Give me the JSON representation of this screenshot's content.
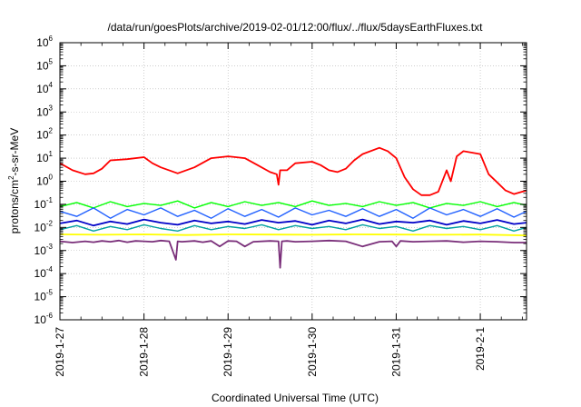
{
  "chart_data": {
    "type": "line",
    "title": "/data/run/goesPlots/archive/2019-02-01/12:00/flux/../flux/5daysEarthFluxes.txt",
    "xlabel": "Coordinated Universal Time (UTC)",
    "ylabel_parts": [
      "protons/cm",
      "2",
      "-s-sr-MeV"
    ],
    "x_ticks": [
      "2019-1-27",
      "2019-1-28",
      "2019-1-29",
      "2019-1-30",
      "2019-1-31",
      "2019-2-1"
    ],
    "xlim_days": [
      0,
      5.55
    ],
    "y_scale": "log",
    "ylim_exp": [
      -6,
      6
    ],
    "y_ticks": [
      {
        "base": "10",
        "exp": "-6"
      },
      {
        "base": "10",
        "exp": "-5"
      },
      {
        "base": "10",
        "exp": "-4"
      },
      {
        "base": "10",
        "exp": "-3"
      },
      {
        "base": "10",
        "exp": "-2"
      },
      {
        "base": "10",
        "exp": "-1"
      },
      {
        "base": "10",
        "exp": "0"
      },
      {
        "base": "10",
        "exp": "1"
      },
      {
        "base": "10",
        "exp": "2"
      },
      {
        "base": "10",
        "exp": "3"
      },
      {
        "base": "10",
        "exp": "4"
      },
      {
        "base": "10",
        "exp": "5"
      },
      {
        "base": "10",
        "exp": "6"
      }
    ],
    "grid": true,
    "series": [
      {
        "color": "#7a2f7a",
        "width": 1.8,
        "x": [
          0,
          0.15,
          0.3,
          0.4,
          0.5,
          0.6,
          0.7,
          0.8,
          0.9,
          1.0,
          1.1,
          1.2,
          1.3,
          1.38,
          1.4,
          1.45,
          1.6,
          1.7,
          1.8,
          1.9,
          2.0,
          2.1,
          2.2,
          2.3,
          2.5,
          2.6,
          2.62,
          2.64,
          2.7,
          2.8,
          3.0,
          3.2,
          3.4,
          3.6,
          3.8,
          3.95,
          4.0,
          4.05,
          4.2,
          4.4,
          4.6,
          4.8,
          5.0,
          5.2,
          5.4,
          5.55
        ],
        "y": [
          0.0025,
          0.0022,
          0.0025,
          0.0023,
          0.0026,
          0.0024,
          0.0027,
          0.0023,
          0.0026,
          0.0025,
          0.0024,
          0.0027,
          0.0025,
          0.0004,
          0.0025,
          0.0024,
          0.0026,
          0.0023,
          0.0026,
          0.0015,
          0.0026,
          0.0025,
          0.0015,
          0.0024,
          0.0026,
          0.0025,
          0.00018,
          0.0025,
          0.0026,
          0.0024,
          0.0025,
          0.0027,
          0.0025,
          0.0015,
          0.0024,
          0.0025,
          0.0015,
          0.0026,
          0.0024,
          0.0025,
          0.0026,
          0.0023,
          0.0025,
          0.0024,
          0.0022,
          0.0022
        ]
      },
      {
        "color": "#ffff00",
        "width": 1.8,
        "x": [
          0,
          0.5,
          1.0,
          1.5,
          2.0,
          2.5,
          3.0,
          3.5,
          4.0,
          4.5,
          5.0,
          5.55
        ],
        "y": [
          0.005,
          0.0048,
          0.005,
          0.0047,
          0.005,
          0.0049,
          0.0048,
          0.005,
          0.0049,
          0.0048,
          0.0049,
          0.0045
        ]
      },
      {
        "color": "#00a0a0",
        "width": 1.4,
        "x": [
          0,
          0.2,
          0.4,
          0.6,
          0.8,
          1.0,
          1.2,
          1.4,
          1.6,
          1.8,
          2.0,
          2.2,
          2.4,
          2.6,
          2.8,
          3.0,
          3.2,
          3.4,
          3.6,
          3.8,
          4.0,
          4.2,
          4.4,
          4.6,
          4.8,
          5.0,
          5.2,
          5.4,
          5.55
        ],
        "y": [
          0.008,
          0.012,
          0.007,
          0.011,
          0.008,
          0.013,
          0.009,
          0.007,
          0.012,
          0.008,
          0.011,
          0.009,
          0.013,
          0.008,
          0.012,
          0.009,
          0.011,
          0.008,
          0.013,
          0.009,
          0.011,
          0.007,
          0.012,
          0.009,
          0.011,
          0.008,
          0.012,
          0.007,
          0.01
        ]
      },
      {
        "color": "#00ff00",
        "width": 1.4,
        "x": [
          0,
          0.2,
          0.4,
          0.6,
          0.8,
          1.0,
          1.2,
          1.4,
          1.6,
          1.8,
          2.0,
          2.2,
          2.4,
          2.6,
          2.8,
          3.0,
          3.2,
          3.4,
          3.6,
          3.8,
          4.0,
          4.2,
          4.4,
          4.6,
          4.8,
          5.0,
          5.2,
          5.4,
          5.55
        ],
        "y": [
          0.08,
          0.12,
          0.07,
          0.13,
          0.08,
          0.11,
          0.09,
          0.14,
          0.07,
          0.12,
          0.08,
          0.13,
          0.09,
          0.12,
          0.08,
          0.14,
          0.09,
          0.11,
          0.08,
          0.13,
          0.09,
          0.12,
          0.07,
          0.11,
          0.09,
          0.13,
          0.08,
          0.12,
          0.09
        ]
      },
      {
        "color": "#2060ff",
        "width": 1.4,
        "x": [
          0,
          0.2,
          0.4,
          0.6,
          0.8,
          1.0,
          1.2,
          1.4,
          1.6,
          1.8,
          2.0,
          2.2,
          2.4,
          2.6,
          2.8,
          3.0,
          3.2,
          3.4,
          3.6,
          3.8,
          4.0,
          4.2,
          4.4,
          4.6,
          4.8,
          5.0,
          5.2,
          5.4,
          5.55
        ],
        "y": [
          0.05,
          0.03,
          0.07,
          0.025,
          0.06,
          0.035,
          0.07,
          0.03,
          0.055,
          0.025,
          0.065,
          0.03,
          0.06,
          0.028,
          0.07,
          0.035,
          0.055,
          0.03,
          0.065,
          0.03,
          0.06,
          0.025,
          0.07,
          0.035,
          0.06,
          0.03,
          0.065,
          0.028,
          0.05
        ]
      },
      {
        "color": "#0000c8",
        "width": 1.8,
        "x": [
          0,
          0.2,
          0.4,
          0.6,
          0.8,
          1.0,
          1.2,
          1.4,
          1.6,
          1.8,
          2.0,
          2.2,
          2.4,
          2.6,
          2.8,
          3.0,
          3.2,
          3.4,
          3.6,
          3.8,
          4.0,
          4.2,
          4.4,
          4.6,
          4.8,
          5.0,
          5.2,
          5.4,
          5.55
        ],
        "y": [
          0.015,
          0.02,
          0.012,
          0.018,
          0.014,
          0.022,
          0.016,
          0.013,
          0.02,
          0.015,
          0.018,
          0.014,
          0.021,
          0.016,
          0.019,
          0.013,
          0.02,
          0.015,
          0.022,
          0.014,
          0.018,
          0.016,
          0.02,
          0.013,
          0.019,
          0.015,
          0.021,
          0.014,
          0.016
        ]
      },
      {
        "color": "#ff0000",
        "width": 1.8,
        "x": [
          0,
          0.15,
          0.3,
          0.4,
          0.5,
          0.6,
          0.8,
          1.0,
          1.1,
          1.2,
          1.4,
          1.6,
          1.8,
          2.0,
          2.2,
          2.35,
          2.5,
          2.58,
          2.6,
          2.62,
          2.7,
          2.8,
          3.0,
          3.1,
          3.2,
          3.3,
          3.4,
          3.5,
          3.6,
          3.8,
          3.9,
          4.0,
          4.1,
          4.2,
          4.3,
          4.4,
          4.5,
          4.6,
          4.65,
          4.72,
          4.8,
          5.0,
          5.1,
          5.2,
          5.3,
          5.4,
          5.55
        ],
        "y": [
          6,
          3,
          2,
          2.2,
          3.5,
          8,
          9,
          11,
          6,
          4,
          2.2,
          4,
          10,
          12,
          10,
          5,
          2.5,
          2,
          0.7,
          3,
          3,
          6,
          7,
          5,
          3,
          2.5,
          3.5,
          8,
          15,
          28,
          20,
          10,
          1.5,
          0.45,
          0.25,
          0.25,
          0.35,
          3,
          1.0,
          12,
          20,
          15,
          2,
          0.9,
          0.4,
          0.28,
          0.4
        ]
      }
    ]
  }
}
